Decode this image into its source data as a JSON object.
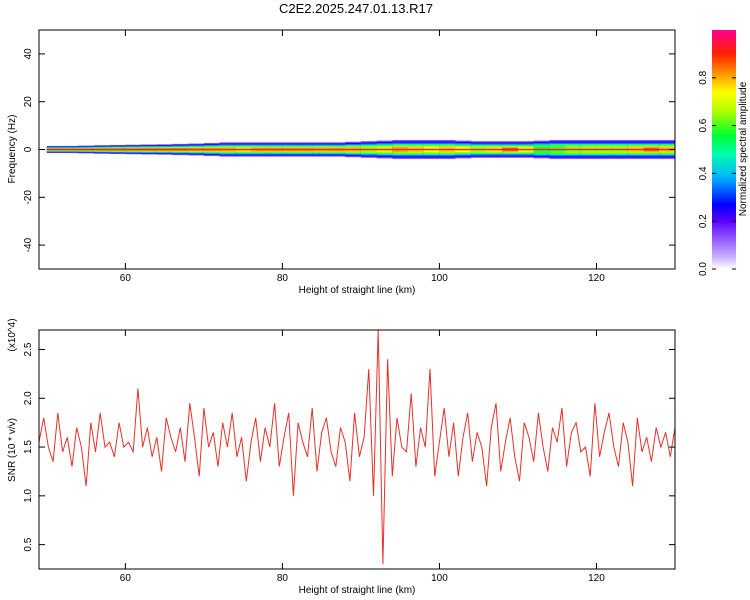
{
  "figure_title": "C2E2.2025.247.01.13.R17",
  "colors": {
    "snr_line": "#e8302a",
    "axes": "#000000",
    "spectral_ridge_peak": "#e8243b",
    "colormap": [
      "#ffffff",
      "#b08cff",
      "#6a00ff",
      "#0000ff",
      "#00d0ff",
      "#00ff60",
      "#ffff00",
      "#ff8000",
      "#ff0000",
      "#ff0090"
    ]
  },
  "chart_data": [
    {
      "type": "heatmap",
      "title": "",
      "xlabel": "Height of straight line (km)",
      "ylabel": "Frequency (Hz)",
      "xlim": [
        49,
        130
      ],
      "ylim": [
        -50,
        50
      ],
      "x_ticks": [
        60,
        80,
        100,
        120
      ],
      "y_ticks": [
        40,
        20,
        0,
        -20,
        -40
      ],
      "grid": false,
      "colorbar": {
        "label": "Normalized spectral amplitude",
        "range": [
          0.0,
          1.0
        ],
        "ticks": [
          "0.0",
          "0.2",
          "0.4",
          "0.6",
          "0.8"
        ]
      },
      "ridge_frequency_hz": 0,
      "x": [
        50,
        52,
        54,
        56,
        58,
        60,
        62,
        64,
        66,
        68,
        70,
        72,
        74,
        76,
        78,
        80,
        82,
        84,
        86,
        88,
        90,
        92,
        94,
        96,
        98,
        100,
        102,
        104,
        106,
        108,
        110,
        112,
        114,
        116,
        118,
        120,
        122,
        124,
        126,
        128,
        130
      ],
      "ridge_amplitude": [
        0.95,
        0.92,
        0.9,
        0.88,
        0.85,
        0.9,
        0.86,
        0.95,
        0.8,
        0.92,
        0.75,
        0.88,
        0.7,
        0.82,
        0.78,
        0.9,
        0.72,
        0.88,
        0.7,
        0.92,
        0.65,
        0.68,
        0.72,
        0.95,
        0.6,
        0.85,
        0.7,
        0.78,
        0.6,
        0.92,
        0.88,
        0.55,
        0.62,
        0.58,
        0.7,
        0.6,
        0.72,
        0.65,
        0.9,
        0.85,
        0.7
      ],
      "frequency_spread_hz": [
        1.5,
        1.5,
        1.5,
        1.8,
        1.8,
        2,
        2,
        2.2,
        2.2,
        2.5,
        2.5,
        3,
        3,
        3,
        3,
        3,
        3,
        3,
        3,
        3,
        3.5,
        3.5,
        4,
        4,
        4,
        4,
        4,
        3.5,
        3.5,
        3.5,
        3.5,
        3.5,
        4,
        4,
        4,
        4,
        4,
        4,
        4,
        4,
        4
      ]
    },
    {
      "type": "line",
      "title": "",
      "xlabel": "Height of straight line (km)",
      "ylabel": "SNR (10 * v/v)",
      "y_multiplier": "(x10^4)",
      "xlim": [
        49,
        130
      ],
      "ylim": [
        0.25,
        2.7
      ],
      "x_ticks": [
        60,
        80,
        100,
        120
      ],
      "y_ticks": [
        "0.5",
        "1.0",
        "1.5",
        "2.0",
        "2.5"
      ],
      "grid": false,
      "series": [
        {
          "x": [
            49,
            49.6,
            50.2,
            50.8,
            51.4,
            52,
            52.6,
            53.2,
            53.8,
            54.4,
            55,
            55.6,
            56.2,
            56.8,
            57.4,
            58,
            58.6,
            59.2,
            59.8,
            60.4,
            61,
            61.6,
            62.2,
            62.8,
            63.4,
            64,
            64.6,
            65.2,
            65.8,
            66.4,
            67,
            67.6,
            68.2,
            68.8,
            69.4,
            70,
            70.6,
            71.2,
            71.8,
            72.4,
            73,
            73.6,
            74.2,
            74.8,
            75.4,
            76,
            76.6,
            77.2,
            77.8,
            78.4,
            79,
            79.6,
            80.2,
            80.8,
            81.4,
            82,
            82.6,
            83.2,
            83.8,
            84.4,
            85,
            85.6,
            86.2,
            86.8,
            87.4,
            88,
            88.6,
            89.2,
            89.8,
            90.4,
            91,
            91.6,
            92.2,
            92.8,
            93.4,
            94,
            94.6,
            95.2,
            95.8,
            96.4,
            97,
            97.6,
            98.2,
            98.8,
            99.4,
            100,
            100.6,
            101.2,
            101.8,
            102.4,
            103,
            103.6,
            104.2,
            104.8,
            105.4,
            106,
            106.6,
            107.2,
            107.8,
            108.4,
            109,
            109.6,
            110.2,
            110.8,
            111.4,
            112,
            112.6,
            113.2,
            113.8,
            114.4,
            115,
            115.6,
            116.2,
            116.8,
            117.4,
            118,
            118.6,
            119.2,
            119.8,
            120.4,
            121,
            121.6,
            122.2,
            122.8,
            123.4,
            124,
            124.6,
            125.2,
            125.8,
            126.4,
            127,
            127.6,
            128.2,
            128.8,
            129.4,
            130
          ],
          "values": [
            1.55,
            1.8,
            1.5,
            1.35,
            1.85,
            1.45,
            1.6,
            1.3,
            1.7,
            1.5,
            1.1,
            1.75,
            1.45,
            1.85,
            1.5,
            1.55,
            1.4,
            1.75,
            1.5,
            1.55,
            1.45,
            2.1,
            1.5,
            1.7,
            1.4,
            1.6,
            1.25,
            1.8,
            1.6,
            1.45,
            1.7,
            1.35,
            1.95,
            1.6,
            1.2,
            1.9,
            1.5,
            1.65,
            1.3,
            1.75,
            1.5,
            1.85,
            1.4,
            1.6,
            1.15,
            1.55,
            1.8,
            1.35,
            1.7,
            1.5,
            1.95,
            1.3,
            1.6,
            1.85,
            1.0,
            1.75,
            1.55,
            1.4,
            1.9,
            1.25,
            1.65,
            1.8,
            1.45,
            1.3,
            1.7,
            1.55,
            1.15,
            1.85,
            1.4,
            1.6,
            2.3,
            1.0,
            2.7,
            0.3,
            2.4,
            1.2,
            1.8,
            1.5,
            1.45,
            2.05,
            1.3,
            1.7,
            1.5,
            2.3,
            1.2,
            1.55,
            1.9,
            1.4,
            1.75,
            1.2,
            1.6,
            1.85,
            1.35,
            1.65,
            1.5,
            1.1,
            1.7,
            1.95,
            1.25,
            1.55,
            1.8,
            1.4,
            1.15,
            1.75,
            1.6,
            1.35,
            1.85,
            1.5,
            1.25,
            1.7,
            1.55,
            1.9,
            1.3,
            1.65,
            1.75,
            1.45,
            1.5,
            1.2,
            1.95,
            1.4,
            1.65,
            1.85,
            1.5,
            1.3,
            1.75,
            1.55,
            1.1,
            1.8,
            1.45,
            1.6,
            1.35,
            1.7,
            1.5,
            1.65,
            1.4,
            1.7
          ]
        }
      ]
    }
  ]
}
